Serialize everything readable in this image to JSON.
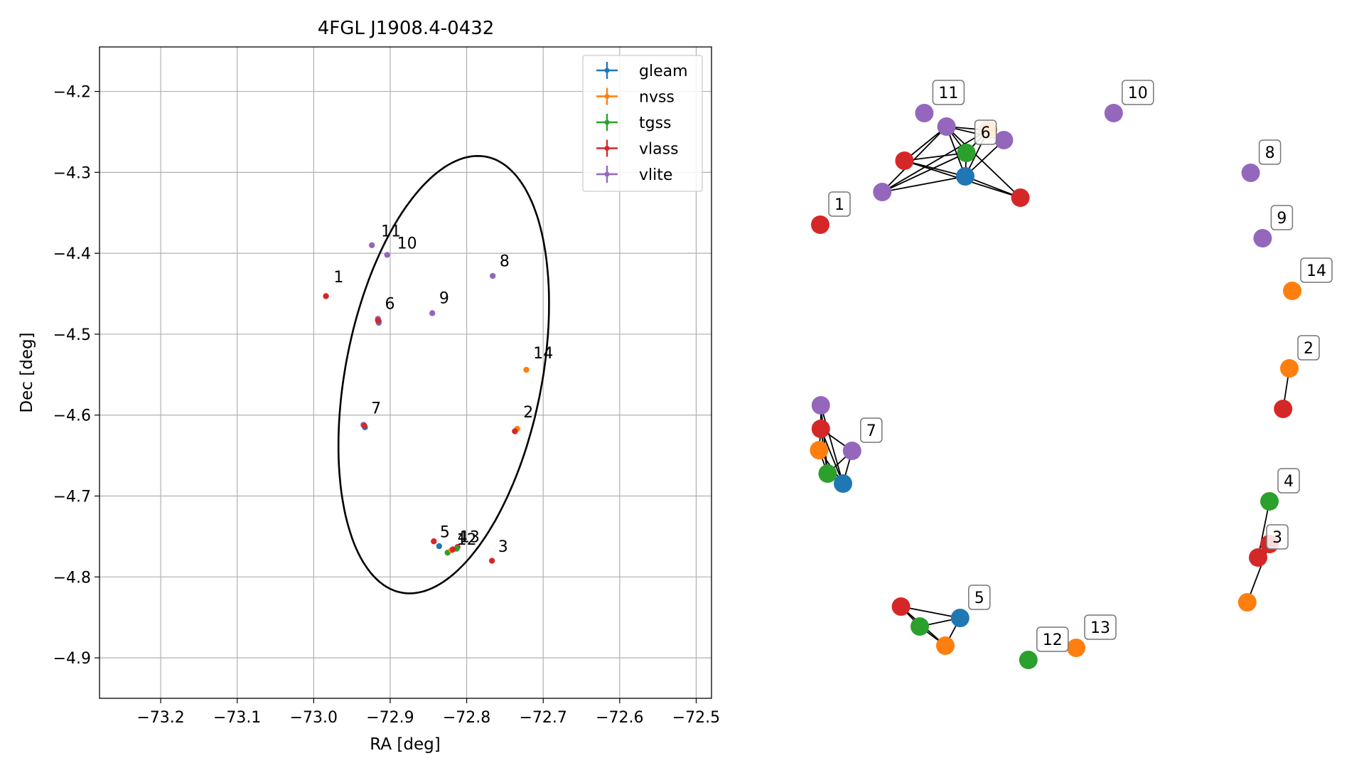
{
  "colors": {
    "gleam": "#1f77b4",
    "nvss": "#ff7f0e",
    "tgss": "#2ca02c",
    "vlass": "#d62728",
    "vlite": "#9467bd",
    "grid": "#b0b0b0",
    "edge": "#000000"
  },
  "chart_data": [
    {
      "type": "scatter",
      "title": "4FGL J1908.4-0432",
      "xlabel": "RA [deg]",
      "ylabel": "Dec [deg]",
      "xlim": [
        -73.28,
        -72.48
      ],
      "ylim": [
        -4.95,
        -4.145
      ],
      "x_inverted": false,
      "grid": true,
      "xticks": [
        -73.2,
        -73.1,
        -73.0,
        -72.9,
        -72.8,
        -72.7,
        -72.6,
        -72.5
      ],
      "xtick_labels": [
        "−73.2",
        "−73.1",
        "−73.0",
        "−72.9",
        "−72.8",
        "−72.7",
        "−72.6",
        "−72.5"
      ],
      "yticks": [
        -4.2,
        -4.3,
        -4.4,
        -4.5,
        -4.6,
        -4.7,
        -4.8,
        -4.9
      ],
      "ytick_labels": [
        "−4.2",
        "−4.3",
        "−4.4",
        "−4.5",
        "−4.6",
        "−4.7",
        "−4.8",
        "−4.9"
      ],
      "legend": {
        "placement": "top-right",
        "entries": [
          "gleam",
          "nvss",
          "tgss",
          "vlass",
          "vlite"
        ]
      },
      "ellipse": {
        "center": [
          -72.83,
          -4.55
        ],
        "semi_axes": [
          0.128,
          0.275
        ],
        "rotation_deg": -12
      },
      "points": [
        {
          "survey": "vlass",
          "x": -72.984,
          "y": -4.453
        },
        {
          "survey": "nvss",
          "x": -72.734,
          "y": -4.617
        },
        {
          "survey": "vlass",
          "x": -72.737,
          "y": -4.62
        },
        {
          "survey": "vlass",
          "x": -72.767,
          "y": -4.78
        },
        {
          "survey": "vlass",
          "x": -72.812,
          "y": -4.763
        },
        {
          "survey": "tgss",
          "x": -72.813,
          "y": -4.765
        },
        {
          "survey": "vlass",
          "x": -72.843,
          "y": -4.756
        },
        {
          "survey": "gleam",
          "x": -72.836,
          "y": -4.762
        },
        {
          "survey": "tgss",
          "x": -72.825,
          "y": -4.77
        },
        {
          "survey": "nvss",
          "x": -72.82,
          "y": -4.767
        },
        {
          "survey": "vlass",
          "x": -72.818,
          "y": -4.766
        },
        {
          "survey": "vlite",
          "x": -72.916,
          "y": -4.481
        },
        {
          "survey": "vlite",
          "x": -72.915,
          "y": -4.486
        },
        {
          "survey": "gleam",
          "x": -72.915,
          "y": -4.484
        },
        {
          "survey": "vlass",
          "x": -72.916,
          "y": -4.483
        },
        {
          "survey": "vlite",
          "x": -72.935,
          "y": -4.612
        },
        {
          "survey": "gleam",
          "x": -72.933,
          "y": -4.615
        },
        {
          "survey": "vlass",
          "x": -72.934,
          "y": -4.613
        },
        {
          "survey": "vlite",
          "x": -72.766,
          "y": -4.428
        },
        {
          "survey": "vlite",
          "x": -72.845,
          "y": -4.474
        },
        {
          "survey": "vlite",
          "x": -72.904,
          "y": -4.402
        },
        {
          "survey": "vlite",
          "x": -72.924,
          "y": -4.39
        },
        {
          "survey": "nvss",
          "x": -72.722,
          "y": -4.544
        }
      ],
      "labels": [
        {
          "text": "1",
          "x": -72.974,
          "y": -4.436
        },
        {
          "text": "10",
          "x": -72.891,
          "y": -4.394
        },
        {
          "text": "11",
          "x": -72.912,
          "y": -4.379
        },
        {
          "text": "6",
          "x": -72.907,
          "y": -4.469
        },
        {
          "text": "9",
          "x": -72.836,
          "y": -4.462
        },
        {
          "text": "8",
          "x": -72.757,
          "y": -4.416
        },
        {
          "text": "14",
          "x": -72.713,
          "y": -4.53
        },
        {
          "text": "7",
          "x": -72.925,
          "y": -4.598
        },
        {
          "text": "2",
          "x": -72.726,
          "y": -4.603
        },
        {
          "text": "5",
          "x": -72.835,
          "y": -4.751
        },
        {
          "text": "4",
          "x": -72.812,
          "y": -4.757
        },
        {
          "text": "13",
          "x": -72.809,
          "y": -4.757
        },
        {
          "text": "12",
          "x": -72.813,
          "y": -4.76
        },
        {
          "text": "3",
          "x": -72.759,
          "y": -4.769
        }
      ]
    },
    {
      "type": "network",
      "nodes": [
        {
          "id": "n1",
          "survey": "vlass",
          "x": 0.08,
          "y": 0.276,
          "label": "1"
        },
        {
          "id": "n2a",
          "survey": "nvss",
          "x": 0.905,
          "y": 0.478,
          "label": "2"
        },
        {
          "id": "n2b",
          "survey": "vlass",
          "x": 0.894,
          "y": 0.535
        },
        {
          "id": "n4a",
          "survey": "tgss",
          "x": 0.87,
          "y": 0.665,
          "label": "4"
        },
        {
          "id": "n3a",
          "survey": "vlass",
          "x": 0.87,
          "y": 0.725
        },
        {
          "id": "n3b",
          "survey": "vlass",
          "x": 0.85,
          "y": 0.744,
          "label": "3"
        },
        {
          "id": "n3c",
          "survey": "nvss",
          "x": 0.831,
          "y": 0.807
        },
        {
          "id": "n14",
          "survey": "nvss",
          "x": 0.91,
          "y": 0.369,
          "label": "14"
        },
        {
          "id": "n9",
          "survey": "vlite",
          "x": 0.858,
          "y": 0.295,
          "label": "9"
        },
        {
          "id": "n8",
          "survey": "vlite",
          "x": 0.837,
          "y": 0.203,
          "label": "8"
        },
        {
          "id": "n10",
          "survey": "vlite",
          "x": 0.596,
          "y": 0.119,
          "label": "10"
        },
        {
          "id": "n11",
          "survey": "vlite",
          "x": 0.263,
          "y": 0.119,
          "label": "11"
        },
        {
          "id": "n6a",
          "survey": "vlite",
          "x": 0.302,
          "y": 0.138
        },
        {
          "id": "n6b",
          "survey": "nvss",
          "x": 0.375,
          "y": 0.143
        },
        {
          "id": "n6c",
          "survey": "vlite",
          "x": 0.403,
          "y": 0.157
        },
        {
          "id": "n6d",
          "survey": "tgss",
          "x": 0.337,
          "y": 0.175,
          "label": "6"
        },
        {
          "id": "n6e",
          "survey": "vlass",
          "x": 0.228,
          "y": 0.186
        },
        {
          "id": "n6f",
          "survey": "gleam",
          "x": 0.335,
          "y": 0.208
        },
        {
          "id": "n6g",
          "survey": "vlass",
          "x": 0.432,
          "y": 0.238
        },
        {
          "id": "n6h",
          "survey": "vlite",
          "x": 0.189,
          "y": 0.23
        },
        {
          "id": "n7a",
          "survey": "vlite",
          "x": 0.081,
          "y": 0.53
        },
        {
          "id": "n7b",
          "survey": "vlass",
          "x": 0.081,
          "y": 0.563
        },
        {
          "id": "n7c",
          "survey": "vlite",
          "x": 0.136,
          "y": 0.594,
          "label": "7"
        },
        {
          "id": "n7d",
          "survey": "nvss",
          "x": 0.078,
          "y": 0.593
        },
        {
          "id": "n7e",
          "survey": "tgss",
          "x": 0.093,
          "y": 0.626
        },
        {
          "id": "n7f",
          "survey": "gleam",
          "x": 0.12,
          "y": 0.64
        },
        {
          "id": "n5a",
          "survey": "vlass",
          "x": 0.222,
          "y": 0.813
        },
        {
          "id": "n5b",
          "survey": "gleam",
          "x": 0.326,
          "y": 0.829,
          "label": "5"
        },
        {
          "id": "n5c",
          "survey": "tgss",
          "x": 0.255,
          "y": 0.841
        },
        {
          "id": "n5d",
          "survey": "nvss",
          "x": 0.3,
          "y": 0.868
        },
        {
          "id": "n12",
          "survey": "tgss",
          "x": 0.446,
          "y": 0.888,
          "label": "12"
        },
        {
          "id": "n13",
          "survey": "nvss",
          "x": 0.53,
          "y": 0.871,
          "label": "13"
        }
      ],
      "edges": [
        [
          "n2a",
          "n2b"
        ],
        [
          "n4a",
          "n3b"
        ],
        [
          "n3a",
          "n3c"
        ],
        [
          "n6a",
          "n6b"
        ],
        [
          "n6a",
          "n6c"
        ],
        [
          "n6a",
          "n6d"
        ],
        [
          "n6a",
          "n6e"
        ],
        [
          "n6a",
          "n6f"
        ],
        [
          "n6a",
          "n6g"
        ],
        [
          "n6a",
          "n6h"
        ],
        [
          "n6b",
          "n6d"
        ],
        [
          "n6b",
          "n6f"
        ],
        [
          "n6c",
          "n6f"
        ],
        [
          "n6d",
          "n6e"
        ],
        [
          "n6d",
          "n6f"
        ],
        [
          "n6d",
          "n6h"
        ],
        [
          "n6e",
          "n6f"
        ],
        [
          "n6e",
          "n6g"
        ],
        [
          "n6f",
          "n6h"
        ],
        [
          "n6f",
          "n6g"
        ],
        [
          "n6h",
          "n6b"
        ],
        [
          "n7a",
          "n7b"
        ],
        [
          "n7a",
          "n7f"
        ],
        [
          "n7a",
          "n7e"
        ],
        [
          "n7b",
          "n7c"
        ],
        [
          "n7b",
          "n7d"
        ],
        [
          "n7b",
          "n7e"
        ],
        [
          "n7b",
          "n7f"
        ],
        [
          "n7c",
          "n7f"
        ],
        [
          "n7d",
          "n7e"
        ],
        [
          "n7d",
          "n7f"
        ],
        [
          "n7e",
          "n7f"
        ],
        [
          "n7c",
          "n7e"
        ],
        [
          "n5a",
          "n5b"
        ],
        [
          "n5a",
          "n5c"
        ],
        [
          "n5a",
          "n5d"
        ],
        [
          "n5b",
          "n5c"
        ],
        [
          "n5b",
          "n5d"
        ],
        [
          "n5c",
          "n5d"
        ]
      ]
    }
  ]
}
